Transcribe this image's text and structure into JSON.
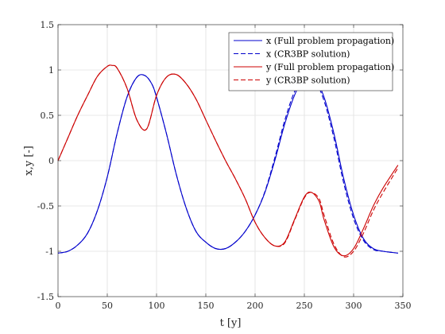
{
  "chart_data": {
    "type": "line",
    "title": "",
    "xlabel": "t [y]",
    "ylabel": "x,y [-]",
    "xlim": [
      0,
      350
    ],
    "ylim": [
      -1.5,
      1.5
    ],
    "xticks": [
      0,
      50,
      100,
      150,
      200,
      250,
      300,
      350
    ],
    "yticks": [
      -1.5,
      -1,
      -0.5,
      0,
      0.5,
      1,
      1.5
    ],
    "xtick_labels": [
      "0",
      "50",
      "100",
      "150",
      "200",
      "250",
      "300",
      "350"
    ],
    "ytick_labels": [
      "-1.5",
      "-1",
      "-0.5",
      "0",
      "0.5",
      "1",
      "1.5"
    ],
    "grid": true,
    "legend_position": "top-right",
    "colors": {
      "x": "#0000cc",
      "y": "#cc0000"
    },
    "series": [
      {
        "name": "x (Full problem propagation)",
        "color": "#0000cc",
        "style": "solid",
        "x": [
          0,
          10,
          20,
          30,
          40,
          50,
          60,
          70,
          80,
          88,
          95,
          100,
          110,
          120,
          130,
          140,
          150,
          160,
          170,
          180,
          190,
          200,
          210,
          220,
          230,
          240,
          250,
          260,
          270,
          280,
          290,
          300,
          310,
          320,
          330,
          345
        ],
        "y": [
          -1.02,
          -1.0,
          -0.93,
          -0.8,
          -0.55,
          -0.18,
          0.3,
          0.7,
          0.92,
          0.94,
          0.85,
          0.7,
          0.3,
          -0.15,
          -0.52,
          -0.78,
          -0.9,
          -0.97,
          -0.97,
          -0.9,
          -0.78,
          -0.6,
          -0.35,
          0.0,
          0.4,
          0.72,
          0.92,
          0.92,
          0.7,
          0.3,
          -0.2,
          -0.6,
          -0.86,
          -0.97,
          -1.0,
          -1.02
        ]
      },
      {
        "name": "x (CR3BP solution)",
        "color": "#0000cc",
        "style": "dashed",
        "x": [
          0,
          10,
          20,
          30,
          40,
          50,
          60,
          70,
          80,
          88,
          95,
          100,
          110,
          120,
          130,
          140,
          150,
          160,
          170,
          180,
          190,
          200,
          210,
          220,
          230,
          240,
          250,
          260,
          270,
          280,
          290,
          300,
          310,
          320,
          330,
          345
        ],
        "y": [
          -1.02,
          -1.0,
          -0.93,
          -0.8,
          -0.55,
          -0.18,
          0.3,
          0.7,
          0.92,
          0.94,
          0.85,
          0.7,
          0.3,
          -0.15,
          -0.52,
          -0.78,
          -0.9,
          -0.97,
          -0.97,
          -0.9,
          -0.78,
          -0.6,
          -0.34,
          0.03,
          0.44,
          0.76,
          0.94,
          0.9,
          0.66,
          0.25,
          -0.25,
          -0.64,
          -0.88,
          -0.98,
          -1.0,
          -1.02
        ]
      },
      {
        "name": "y (Full problem propagation)",
        "color": "#cc0000",
        "style": "solid",
        "x": [
          0,
          10,
          20,
          30,
          40,
          50,
          55,
          60,
          70,
          80,
          90,
          100,
          110,
          120,
          130,
          140,
          150,
          160,
          170,
          180,
          190,
          200,
          210,
          220,
          230,
          240,
          250,
          257,
          265,
          270,
          280,
          290,
          300,
          310,
          320,
          330,
          345
        ],
        "y": [
          0.0,
          0.25,
          0.5,
          0.72,
          0.93,
          1.04,
          1.05,
          1.02,
          0.8,
          0.45,
          0.35,
          0.72,
          0.92,
          0.95,
          0.85,
          0.68,
          0.45,
          0.22,
          0.0,
          -0.2,
          -0.42,
          -0.68,
          -0.85,
          -0.94,
          -0.9,
          -0.65,
          -0.4,
          -0.35,
          -0.45,
          -0.65,
          -0.95,
          -1.05,
          -0.97,
          -0.75,
          -0.5,
          -0.3,
          -0.05
        ]
      },
      {
        "name": "y (CR3BP solution)",
        "color": "#cc0000",
        "style": "dashed",
        "x": [
          0,
          10,
          20,
          30,
          40,
          50,
          55,
          60,
          70,
          80,
          90,
          100,
          110,
          120,
          130,
          140,
          150,
          160,
          170,
          180,
          190,
          200,
          210,
          220,
          230,
          240,
          250,
          257,
          265,
          270,
          280,
          290,
          300,
          310,
          320,
          330,
          345
        ],
        "y": [
          0.0,
          0.25,
          0.5,
          0.72,
          0.93,
          1.04,
          1.05,
          1.02,
          0.8,
          0.45,
          0.35,
          0.72,
          0.92,
          0.95,
          0.85,
          0.68,
          0.45,
          0.22,
          0.0,
          -0.2,
          -0.42,
          -0.68,
          -0.85,
          -0.94,
          -0.91,
          -0.66,
          -0.41,
          -0.35,
          -0.42,
          -0.6,
          -0.92,
          -1.06,
          -1.0,
          -0.8,
          -0.55,
          -0.35,
          -0.08
        ]
      }
    ]
  }
}
